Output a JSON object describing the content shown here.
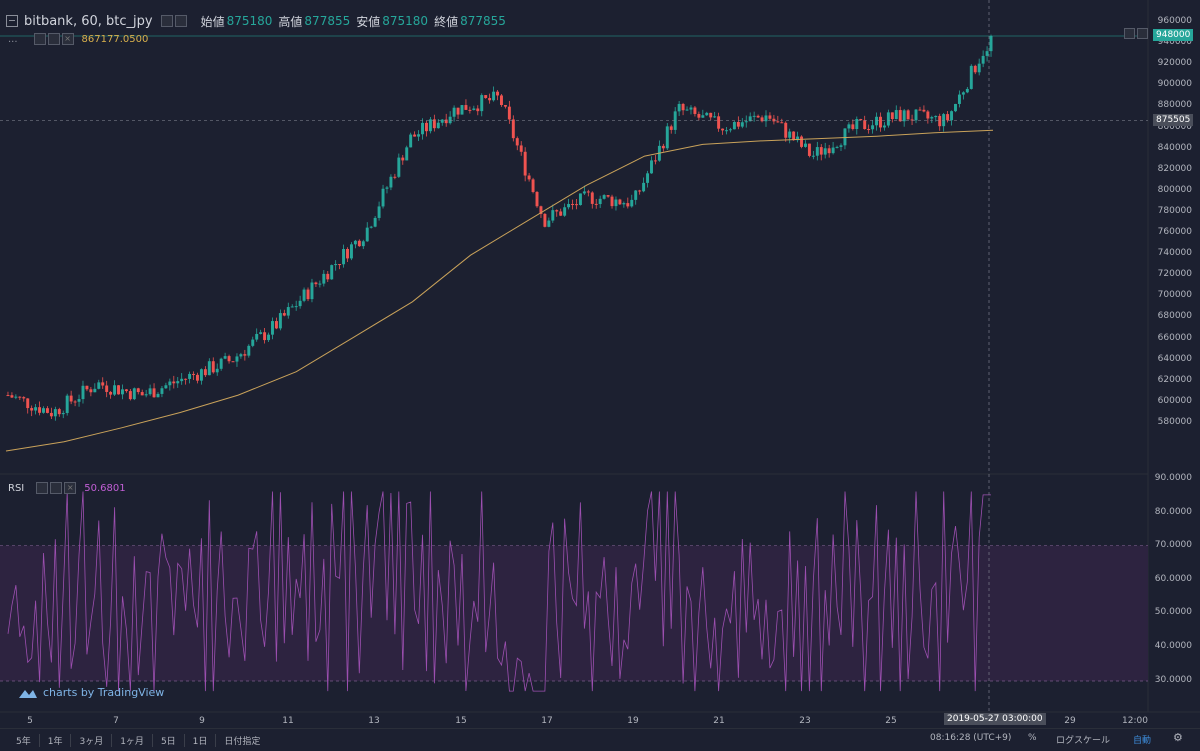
{
  "header": {
    "symbol": "bitbank, 60, btc_jpy",
    "open_label": "始値",
    "open_value": "875180",
    "high_label": "高値",
    "high_value": "877855",
    "low_label": "安値",
    "low_value": "875180",
    "close_label": "終値",
    "close_value": "877855",
    "ma_indicator_dots": "...",
    "ma_value": "867177.0500"
  },
  "rsi": {
    "label": "RSI",
    "value": "50.6801"
  },
  "price_axis": [
    "960000",
    "940000",
    "920000",
    "900000",
    "880000",
    "860000",
    "840000",
    "820000",
    "800000",
    "780000",
    "760000",
    "740000",
    "720000",
    "700000",
    "680000",
    "660000",
    "640000",
    "620000",
    "600000",
    "580000"
  ],
  "rsi_axis": [
    "90.0000",
    "80.0000",
    "70.0000",
    "60.0000",
    "50.0000",
    "40.0000",
    "30.0000"
  ],
  "date_axis": [
    "5",
    "7",
    "9",
    "11",
    "13",
    "15",
    "17",
    "19",
    "21",
    "23",
    "25",
    "29",
    "12:00"
  ],
  "crosshair_date": "2019-05-27 03:00:00",
  "last_price_tag": "948000",
  "crosshair_price_tag": "875505",
  "watermark": "charts by TradingView",
  "bottom_bar": {
    "timeframes": [
      "5年",
      "1年",
      "3ヶ月",
      "1ヶ月",
      "5日",
      "1日",
      "日付指定"
    ],
    "time": "08:16:28 (UTC+9)",
    "percent": "%",
    "log_scale": "ログスケール",
    "auto": "自動"
  },
  "colors": {
    "up": "#26a69a",
    "down": "#ef5350",
    "ma": "#c9a25a",
    "rsi": "#9c4fb0",
    "background": "#1c2030"
  },
  "chart_data": {
    "type": "candlestick",
    "title": "bitbank, 60, btc_jpy",
    "price_ylim": [
      580000,
      960000
    ],
    "close_series_approx": {
      "dates": [
        "5",
        "6",
        "7",
        "8",
        "9",
        "10",
        "11",
        "12",
        "13",
        "14",
        "15",
        "16",
        "17",
        "18",
        "19",
        "20",
        "21",
        "22",
        "23",
        "24",
        "25",
        "26",
        "27"
      ],
      "values": [
        640000,
        625000,
        650000,
        640000,
        655000,
        670000,
        700000,
        740000,
        780000,
        860000,
        885000,
        895000,
        790000,
        810000,
        805000,
        885000,
        870000,
        880000,
        845000,
        870000,
        880000,
        875000,
        948000
      ]
    },
    "ma_series_approx": [
      592000,
      600000,
      612000,
      625000,
      640000,
      660000,
      690000,
      720000,
      760000,
      790000,
      820000,
      845000,
      855000,
      858000,
      860000,
      862000,
      865000,
      867177
    ],
    "rsi_ylim": [
      25,
      90
    ],
    "rsi_bands": [
      30,
      70
    ]
  }
}
